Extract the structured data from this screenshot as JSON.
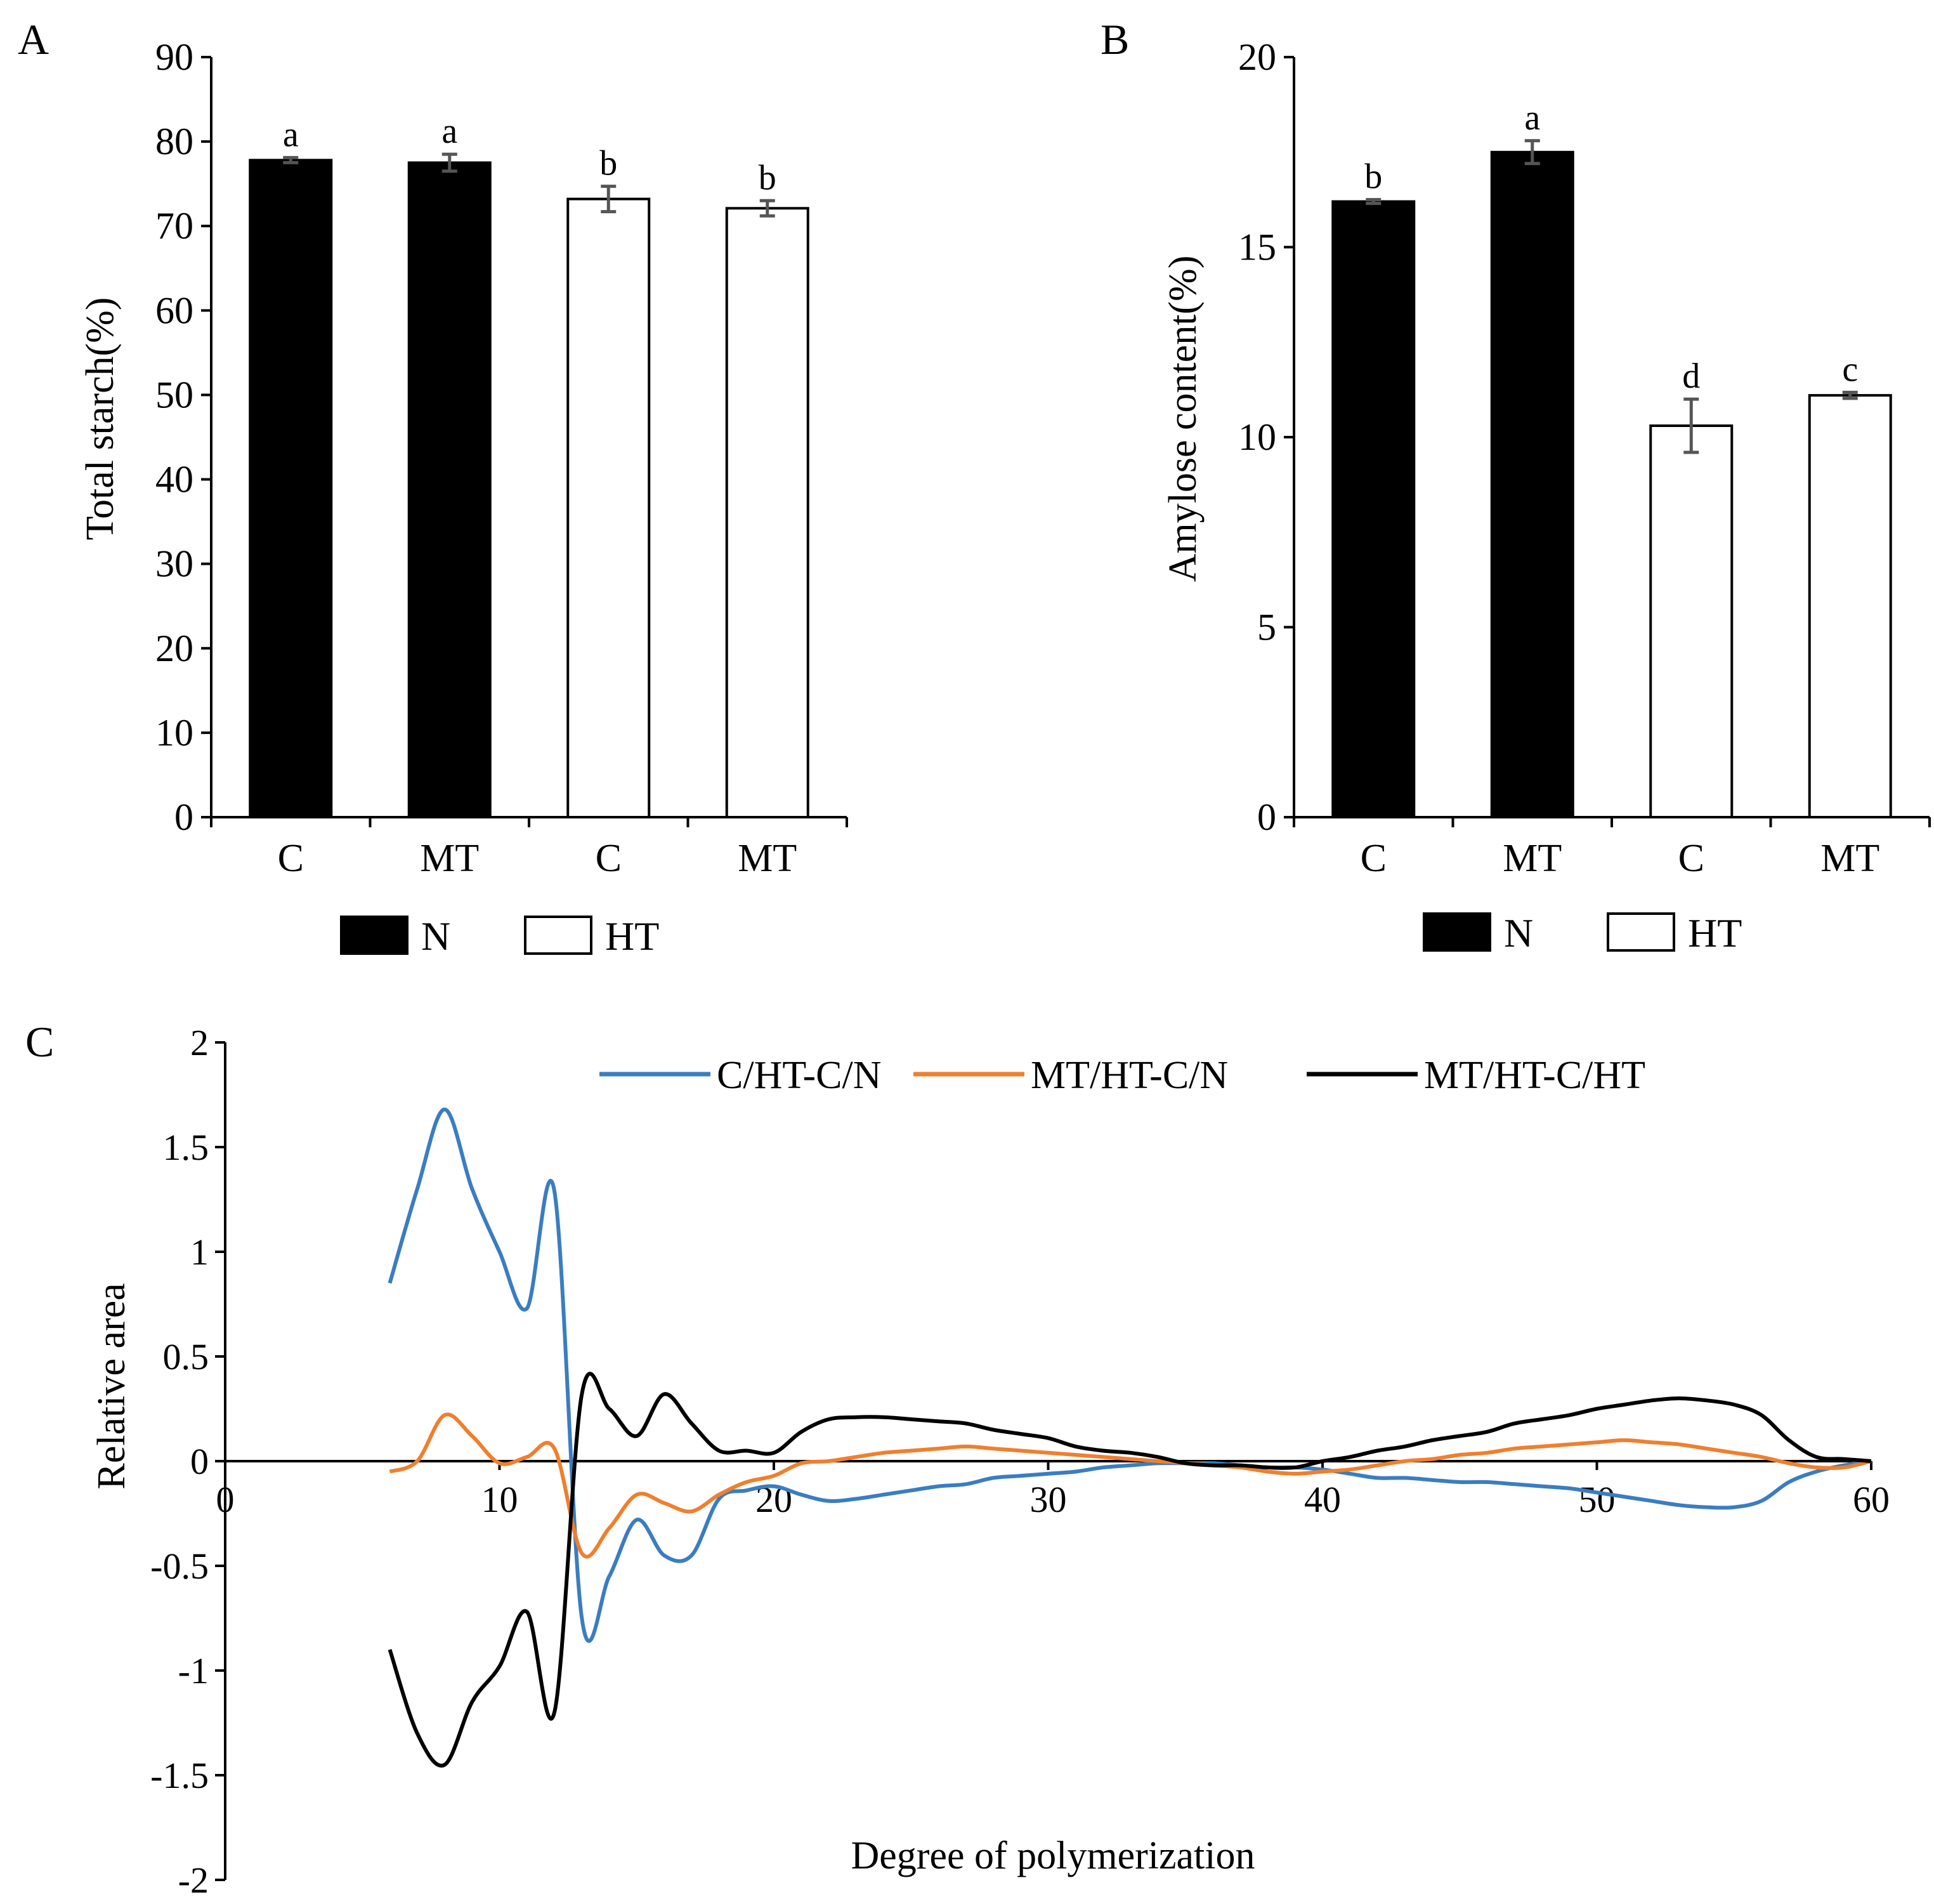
{
  "chart_data": [
    {
      "panel_label": "A",
      "type": "bar",
      "ylabel": "Total starch(%)",
      "ylim": [
        0,
        90
      ],
      "yticks": [
        0,
        10,
        20,
        30,
        40,
        50,
        60,
        70,
        80,
        90
      ],
      "categories": [
        "C",
        "MT",
        "C",
        "MT"
      ],
      "values": [
        77.8,
        77.5,
        73.2,
        72.1
      ],
      "errors": [
        0.3,
        1.0,
        1.5,
        0.9
      ],
      "letters": [
        "a",
        "a",
        "b",
        "b"
      ],
      "groups": [
        "N",
        "N",
        "HT",
        "HT"
      ],
      "legend": [
        {
          "name": "N",
          "color": "#000000"
        },
        {
          "name": "HT",
          "color": "#ffffff"
        }
      ]
    },
    {
      "panel_label": "B",
      "type": "bar",
      "ylabel": "Amylose content(%)",
      "ylim": [
        0,
        20
      ],
      "yticks": [
        0,
        5,
        10,
        15,
        20
      ],
      "categories": [
        "C",
        "MT",
        "C",
        "MT"
      ],
      "values": [
        16.2,
        17.5,
        10.3,
        11.1
      ],
      "errors": [
        0.05,
        0.3,
        0.7,
        0.08
      ],
      "letters": [
        "b",
        "a",
        "d",
        "c"
      ],
      "groups": [
        "N",
        "N",
        "HT",
        "HT"
      ],
      "legend": [
        {
          "name": "N",
          "color": "#000000"
        },
        {
          "name": "HT",
          "color": "#ffffff"
        }
      ]
    },
    {
      "panel_label": "C",
      "type": "line",
      "xlabel": "Degree of polymerization",
      "ylabel": "Relative area",
      "xlim": [
        0,
        60
      ],
      "ylim": [
        -2,
        2
      ],
      "xticks": [
        0,
        10,
        20,
        30,
        40,
        50,
        60
      ],
      "yticks": [
        -2,
        -1.5,
        -1,
        -0.5,
        0,
        0.5,
        1,
        1.5,
        2
      ],
      "ytick_labels": [
        "-2",
        "-1.5",
        "-1",
        "-0.5",
        "0",
        "0.5",
        "1",
        "1.5",
        "2"
      ],
      "series": [
        {
          "name": "C/HT-C/N",
          "color": "#3a7dc1",
          "x": [
            6,
            7,
            8,
            9,
            10,
            11,
            12,
            13,
            14,
            15,
            16,
            17,
            18,
            19,
            20,
            21,
            22,
            23,
            24,
            25,
            26,
            27,
            28,
            29,
            30,
            31,
            32,
            33,
            34,
            35,
            36,
            37,
            38,
            39,
            40,
            41,
            42,
            43,
            44,
            45,
            46,
            47,
            48,
            49,
            50,
            51,
            52,
            53,
            54,
            55,
            56,
            57,
            58,
            59,
            60
          ],
          "y": [
            0.85,
            1.3,
            1.68,
            1.3,
            1.0,
            0.73,
            1.29,
            -0.75,
            -0.55,
            -0.28,
            -0.45,
            -0.45,
            -0.18,
            -0.14,
            -0.12,
            -0.16,
            -0.19,
            -0.18,
            -0.16,
            -0.14,
            -0.12,
            -0.11,
            -0.08,
            -0.07,
            -0.06,
            -0.05,
            -0.03,
            -0.02,
            -0.01,
            -0.01,
            -0.01,
            -0.02,
            -0.03,
            -0.03,
            -0.04,
            -0.06,
            -0.08,
            -0.08,
            -0.09,
            -0.1,
            -0.1,
            -0.11,
            -0.12,
            -0.13,
            -0.15,
            -0.17,
            -0.19,
            -0.21,
            -0.22,
            -0.22,
            -0.19,
            -0.1,
            -0.05,
            -0.02,
            0.0
          ]
        },
        {
          "name": "MT/HT-C/N",
          "color": "#f07f2d",
          "x": [
            6,
            7,
            8,
            9,
            10,
            11,
            12,
            13,
            14,
            15,
            16,
            17,
            18,
            19,
            20,
            21,
            22,
            23,
            24,
            25,
            26,
            27,
            28,
            29,
            30,
            31,
            32,
            33,
            34,
            35,
            36,
            37,
            38,
            39,
            40,
            41,
            42,
            43,
            44,
            45,
            46,
            47,
            48,
            49,
            50,
            51,
            52,
            53,
            54,
            55,
            56,
            57,
            58,
            59,
            60
          ],
          "y": [
            -0.05,
            0.0,
            0.22,
            0.12,
            -0.01,
            0.02,
            0.06,
            -0.44,
            -0.32,
            -0.16,
            -0.2,
            -0.24,
            -0.16,
            -0.1,
            -0.07,
            -0.01,
            0.0,
            0.02,
            0.04,
            0.05,
            0.06,
            0.07,
            0.06,
            0.05,
            0.04,
            0.03,
            0.02,
            0.01,
            0.0,
            -0.01,
            -0.02,
            -0.03,
            -0.05,
            -0.06,
            -0.05,
            -0.04,
            -0.02,
            0.0,
            0.01,
            0.03,
            0.04,
            0.06,
            0.07,
            0.08,
            0.09,
            0.1,
            0.09,
            0.08,
            0.06,
            0.04,
            0.02,
            -0.01,
            -0.03,
            -0.03,
            0.0
          ]
        },
        {
          "name": "MT/HT-C/HT",
          "color": "#000000",
          "x": [
            6,
            7,
            8,
            9,
            10,
            11,
            12,
            13,
            14,
            15,
            16,
            17,
            18,
            19,
            20,
            21,
            22,
            23,
            24,
            25,
            26,
            27,
            28,
            29,
            30,
            31,
            32,
            33,
            34,
            35,
            36,
            37,
            38,
            39,
            40,
            41,
            42,
            43,
            44,
            45,
            46,
            47,
            48,
            49,
            50,
            51,
            52,
            53,
            54,
            55,
            56,
            57,
            58,
            59,
            60
          ],
          "y": [
            -0.9,
            -1.3,
            -1.45,
            -1.15,
            -0.98,
            -0.72,
            -1.2,
            0.32,
            0.25,
            0.12,
            0.32,
            0.18,
            0.05,
            0.05,
            0.04,
            0.14,
            0.2,
            0.21,
            0.21,
            0.2,
            0.19,
            0.18,
            0.15,
            0.13,
            0.11,
            0.07,
            0.05,
            0.04,
            0.02,
            -0.01,
            -0.02,
            -0.02,
            -0.03,
            -0.03,
            0.0,
            0.02,
            0.05,
            0.07,
            0.1,
            0.12,
            0.14,
            0.18,
            0.2,
            0.22,
            0.25,
            0.27,
            0.29,
            0.3,
            0.29,
            0.27,
            0.22,
            0.1,
            0.02,
            0.01,
            0.0
          ]
        }
      ]
    }
  ]
}
